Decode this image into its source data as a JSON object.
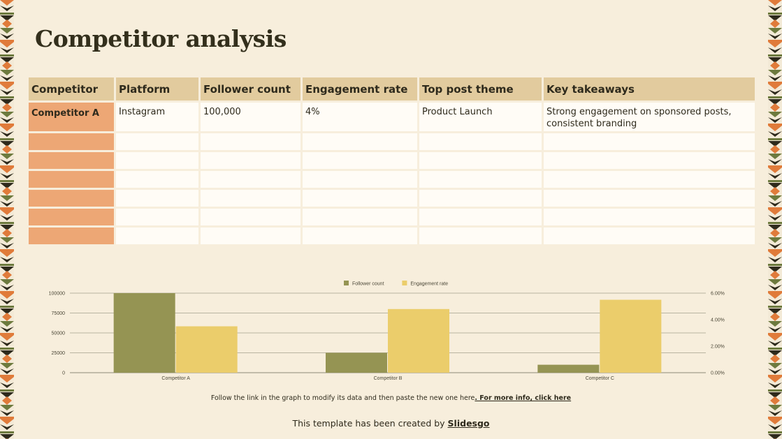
{
  "slide": {
    "title": "Competitor analysis"
  },
  "table": {
    "headers": [
      "Competitor",
      "Platform",
      "Follower count",
      "Engagement rate",
      "Top post theme",
      "Key takeaways"
    ],
    "rows": [
      [
        "Competitor A",
        "Instagram",
        "100,000",
        "4%",
        "Product Launch",
        "Strong engagement on sponsored posts, consistent branding"
      ],
      [
        "",
        "",
        "",
        "",
        "",
        ""
      ],
      [
        "",
        "",
        "",
        "",
        "",
        ""
      ],
      [
        "",
        "",
        "",
        "",
        "",
        ""
      ],
      [
        "",
        "",
        "",
        "",
        "",
        ""
      ],
      [
        "",
        "",
        "",
        "",
        "",
        ""
      ],
      [
        "",
        "",
        "",
        "",
        "",
        ""
      ]
    ]
  },
  "chart_data": {
    "type": "bar",
    "categories": [
      "Competitor A",
      "Competitor B",
      "Competitor C"
    ],
    "series": [
      {
        "name": "Follower count",
        "values": [
          100000,
          25000,
          10000
        ],
        "axis": "left",
        "color": "#959453"
      },
      {
        "name": "Engagement rate",
        "values": [
          0.035,
          0.048,
          0.055
        ],
        "axis": "right",
        "color": "#ebcd6b"
      }
    ],
    "y_left": {
      "ticks": [
        0,
        25000,
        50000,
        75000,
        100000
      ],
      "tick_labels": [
        "0",
        "25000",
        "50000",
        "75000",
        "100000"
      ],
      "ylim": [
        0,
        100000
      ]
    },
    "y_right": {
      "ticks": [
        0,
        0.02,
        0.04,
        0.06
      ],
      "tick_labels": [
        "0.00%",
        "2.00%",
        "4.00%",
        "6.00%"
      ],
      "ylim": [
        0,
        0.06
      ]
    },
    "legend": "top-center",
    "grid": true
  },
  "footer": {
    "note_text": "Follow the link in the graph to modify its data and then paste the new one here",
    "note_link": ". For more info, click here",
    "credit_text": "This template has been created by ",
    "credit_brand": "Slidesgo"
  },
  "colors": {
    "background": "#f7eedc",
    "header_cell": "#e2cb9e",
    "first_col": "#eda775",
    "cell": "#fffcf6",
    "text": "#2e2a1c"
  }
}
